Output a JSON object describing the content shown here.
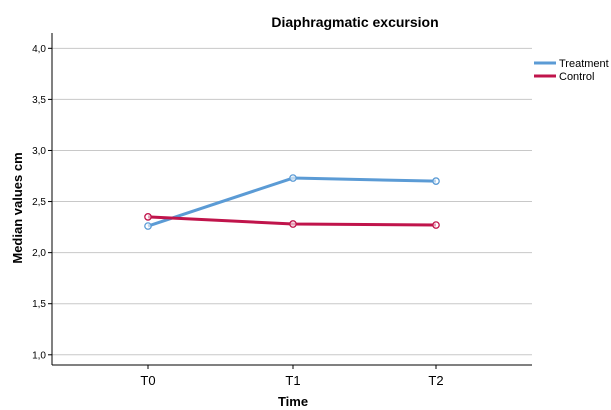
{
  "chart_data": {
    "type": "line",
    "title": "Diaphragmatic excursion",
    "xlabel": "Time",
    "ylabel": "Median values cm",
    "categories": [
      "T0",
      "T1",
      "T2"
    ],
    "ylim": [
      0.9,
      4.15
    ],
    "yticks": [
      "1,0",
      "1,5",
      "2,0",
      "2,5",
      "3,0",
      "3,5",
      "4,0"
    ],
    "ytick_values": [
      1.0,
      1.5,
      2.0,
      2.5,
      3.0,
      3.5,
      4.0
    ],
    "grid": true,
    "legend_position": "top-right",
    "series": [
      {
        "name": "Treatment",
        "values": [
          2.26,
          2.73,
          2.7
        ],
        "color": "#5B9BD5"
      },
      {
        "name": "Control",
        "values": [
          2.35,
          2.28,
          2.27
        ],
        "color": "#C0144B"
      }
    ]
  }
}
